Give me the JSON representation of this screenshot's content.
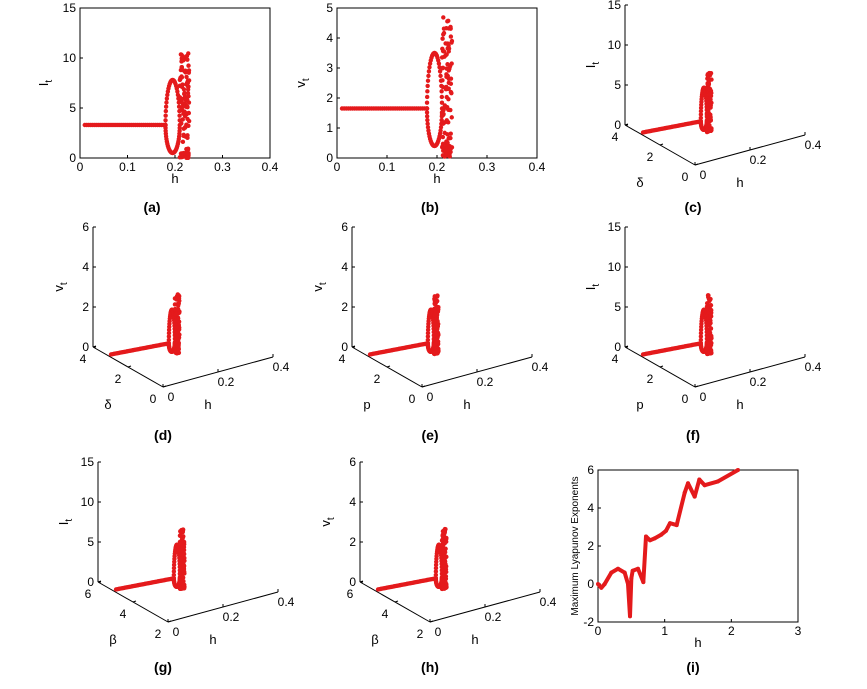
{
  "color": "#e41a1c",
  "chart_data": [
    {
      "id": "a",
      "type": "scatter",
      "view": "2d",
      "caption": "(a)",
      "xlabel": "h",
      "ylabel": "I",
      "ysub": "t",
      "xlim": [
        0,
        0.4
      ],
      "ylim": [
        0,
        15
      ],
      "xticks": [
        "0",
        "0.1",
        "0.2",
        "0.3",
        "0.4"
      ],
      "yticks": [
        "0",
        "5",
        "10",
        "15"
      ],
      "stable": {
        "x": [
          0.01,
          0.18
        ],
        "y": 3.3
      },
      "bifurcation_h": 0.18,
      "fixed_value": 3.3,
      "branch_max": 7.8,
      "branch_min": 0.5,
      "chaos_h": [
        0.21,
        0.23
      ],
      "chaos_range": [
        0,
        10.6
      ]
    },
    {
      "id": "b",
      "type": "scatter",
      "view": "2d",
      "caption": "(b)",
      "xlabel": "h",
      "ylabel": "v",
      "ysub": "t",
      "xlim": [
        0,
        0.4
      ],
      "ylim": [
        0,
        5
      ],
      "xticks": [
        "0",
        "0.1",
        "0.2",
        "0.3",
        "0.4"
      ],
      "yticks": [
        "0",
        "1",
        "2",
        "3",
        "4",
        "5"
      ],
      "stable": {
        "x": [
          0.01,
          0.18
        ],
        "y": 1.65
      },
      "bifurcation_h": 0.18,
      "fixed_value": 1.65,
      "branch_max": 3.5,
      "branch_min": 0.4,
      "chaos_h": [
        0.21,
        0.23
      ],
      "chaos_range": [
        0,
        4.8
      ]
    },
    {
      "id": "c",
      "type": "scatter",
      "view": "3d",
      "caption": "(c)",
      "zlabel": "I",
      "zsub": "t",
      "xlabel": "h",
      "ylabel": "δ",
      "zticks": [
        "0",
        "5",
        "10",
        "15"
      ],
      "xticks": [
        "0",
        "0.2",
        "0.4"
      ],
      "yticks": [
        "4",
        "2",
        "0"
      ]
    },
    {
      "id": "d",
      "type": "scatter",
      "view": "3d",
      "caption": "(d)",
      "zlabel": "v",
      "zsub": "t",
      "xlabel": "h",
      "ylabel": "δ",
      "zticks": [
        "0",
        "2",
        "4",
        "6"
      ],
      "xticks": [
        "0",
        "0.2",
        "0.4"
      ],
      "yticks": [
        "4",
        "2",
        "0"
      ]
    },
    {
      "id": "e",
      "type": "scatter",
      "view": "3d",
      "caption": "(e)",
      "zlabel": "v",
      "zsub": "t",
      "xlabel": "h",
      "ylabel": "p",
      "zticks": [
        "0",
        "2",
        "4",
        "6"
      ],
      "xticks": [
        "0",
        "0.2",
        "0.4"
      ],
      "yticks": [
        "4",
        "2",
        "0"
      ]
    },
    {
      "id": "f",
      "type": "scatter",
      "view": "3d",
      "caption": "(f)",
      "zlabel": "I",
      "zsub": "t",
      "xlabel": "h",
      "ylabel": "p",
      "zticks": [
        "0",
        "5",
        "10",
        "15"
      ],
      "xticks": [
        "0",
        "0.2",
        "0.4"
      ],
      "yticks": [
        "4",
        "2",
        "0"
      ]
    },
    {
      "id": "g",
      "type": "scatter",
      "view": "3d",
      "caption": "(g)",
      "zlabel": "I",
      "zsub": "t",
      "xlabel": "h",
      "ylabel": "β",
      "zticks": [
        "0",
        "5",
        "10",
        "15"
      ],
      "xticks": [
        "0",
        "0.2",
        "0.4"
      ],
      "yticks": [
        "6",
        "4",
        "2"
      ]
    },
    {
      "id": "h",
      "type": "scatter",
      "view": "3d",
      "caption": "(h)",
      "zlabel": "v",
      "zsub": "t",
      "xlabel": "h",
      "ylabel": "β",
      "zticks": [
        "0",
        "2",
        "4",
        "6"
      ],
      "xticks": [
        "0",
        "0.2",
        "0.4"
      ],
      "yticks": [
        "6",
        "4",
        "2"
      ]
    },
    {
      "id": "i",
      "type": "line",
      "view": "2d",
      "caption": "(i)",
      "xlabel": "h",
      "ylabel": "Maximum Lyapunov Exponents",
      "xlim": [
        0,
        3
      ],
      "ylim": [
        -2,
        6
      ],
      "xticks": [
        "0",
        "1",
        "2",
        "3"
      ],
      "yticks": [
        "-2",
        "0",
        "2",
        "4",
        "6"
      ],
      "x": [
        0,
        0.05,
        0.1,
        0.2,
        0.3,
        0.4,
        0.45,
        0.48,
        0.5,
        0.52,
        0.6,
        0.68,
        0.72,
        0.78,
        0.85,
        0.95,
        1.02,
        1.08,
        1.18,
        1.3,
        1.35,
        1.45,
        1.52,
        1.6,
        1.8,
        2.1
      ],
      "y": [
        0,
        -0.2,
        0,
        0.6,
        0.8,
        0.6,
        0,
        -1.7,
        0.3,
        0.7,
        0.8,
        0.1,
        2.5,
        2.3,
        2.4,
        2.6,
        2.8,
        3.2,
        3.1,
        4.8,
        5.3,
        4.6,
        5.5,
        5.2,
        5.4,
        6.0
      ]
    }
  ]
}
